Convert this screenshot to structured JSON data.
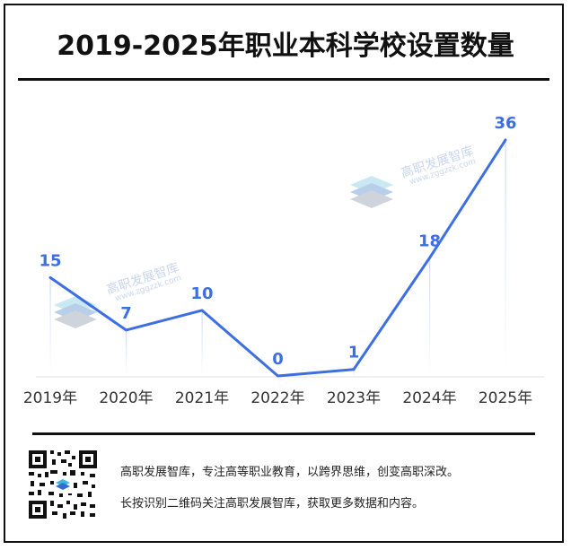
{
  "header": {
    "title": "2019-2025年职业本科学校设置数量"
  },
  "chart_data": {
    "type": "line",
    "title": "2019-2025年职业本科学校设置数量",
    "categories": [
      "2019年",
      "2020年",
      "2021年",
      "2022年",
      "2023年",
      "2024年",
      "2025年"
    ],
    "series": [
      {
        "values": [
          15,
          7,
          10,
          0,
          1,
          18,
          36
        ]
      }
    ],
    "data_labels": [
      "15",
      "7",
      "10",
      "0",
      "1",
      "18",
      "36"
    ],
    "ylim": [
      0,
      36
    ],
    "grid": false,
    "legend": "none",
    "line_color": "#3d6fe0",
    "label_color": "#3d6fe0"
  },
  "watermark": {
    "name": "高职发展智库",
    "url": "www.zggzzk.com"
  },
  "footer": {
    "line1": "高职发展智库，专注高等职业教育，以跨界思维，创变高职深改。",
    "line2": "长按识别二维码关注高职发展智库，获取更多数据和内容。"
  }
}
